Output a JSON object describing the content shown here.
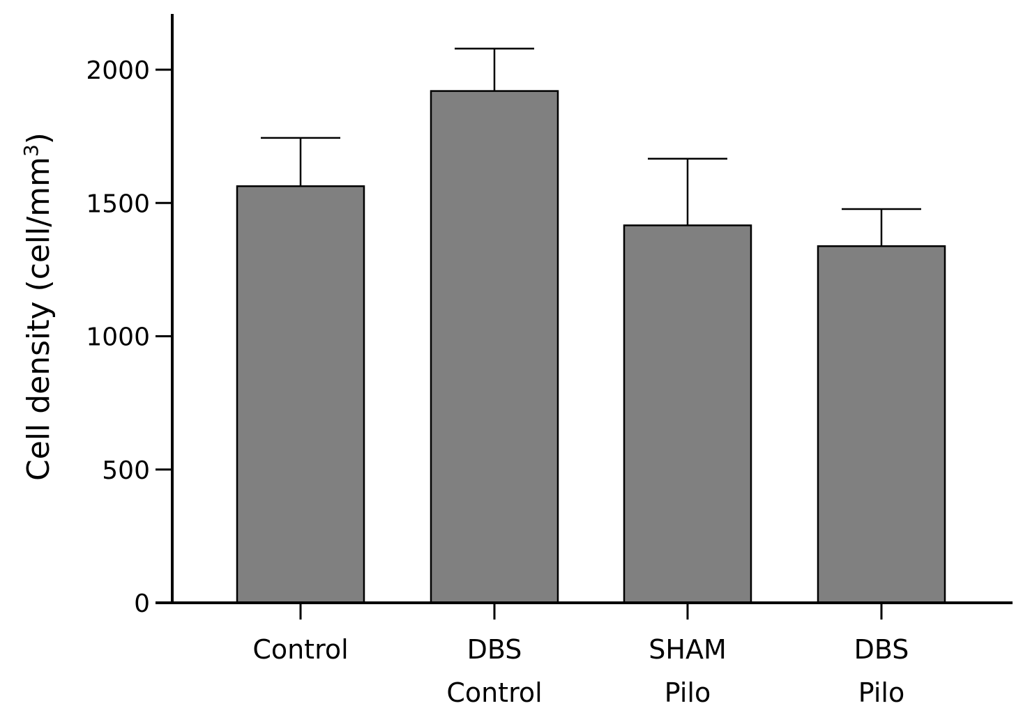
{
  "chart_data": {
    "type": "bar",
    "title": "",
    "xlabel": "",
    "ylabel": "Cell density (cell/mm3)",
    "ylabel_parts": {
      "prefix": "Cell density (cell/mm",
      "superscript": "3",
      "suffix": ")"
    },
    "categories": [
      [
        "Control"
      ],
      [
        "DBS",
        "Control"
      ],
      [
        "SHAM",
        "Pilo"
      ],
      [
        "DBS",
        "Pilo"
      ]
    ],
    "values": [
      1563,
      1920,
      1416,
      1338
    ],
    "error_upper": [
      1744,
      2079,
      1666,
      1477
    ],
    "y_ticks": [
      0,
      500,
      1000,
      1500,
      2000
    ],
    "ylim": [
      0,
      2200
    ],
    "grid": false,
    "colors": {
      "bar_fill": "#808080",
      "bar_stroke": "#000000",
      "axis": "#000000"
    }
  }
}
